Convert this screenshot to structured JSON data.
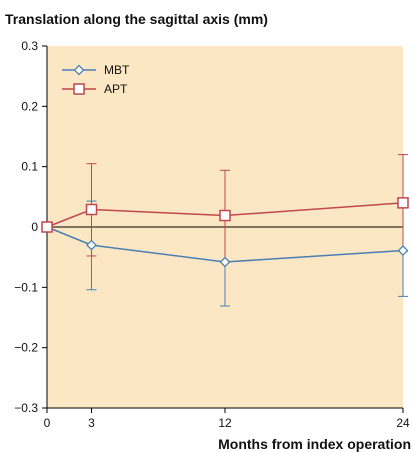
{
  "chart_data": {
    "type": "line",
    "title": "Translation along the sagittal axis (mm)",
    "xlabel": "Months from index operation",
    "ylabel": "",
    "x": [
      0,
      3,
      12,
      24
    ],
    "x_ticks": [
      "0",
      "3",
      "12",
      "24"
    ],
    "xlim": [
      0,
      24
    ],
    "ylim": [
      -0.3,
      0.3
    ],
    "y_ticks": [
      "0.3",
      "0.2",
      "0.1",
      "0",
      "−0.1",
      "−0.2",
      "−0.3"
    ],
    "y_tick_values": [
      0.3,
      0.2,
      0.1,
      0,
      -0.1,
      -0.2,
      -0.3
    ],
    "grid": false,
    "legend_position": "top-left",
    "background_color": "#fbe7c3",
    "series": [
      {
        "name": "MBT",
        "color": "#4a7fb5",
        "marker": "diamond",
        "values": [
          0,
          -0.03,
          -0.058,
          -0.039
        ],
        "error_low": [
          0,
          -0.104,
          -0.131,
          -0.115
        ],
        "error_high": [
          0,
          0.043,
          0.015,
          0.037
        ]
      },
      {
        "name": "APT",
        "color": "#c0474e",
        "marker": "square",
        "values": [
          0,
          0.029,
          0.019,
          0.04
        ],
        "error_low": [
          0,
          -0.048,
          -0.057,
          -0.04
        ],
        "error_high": [
          0,
          0.105,
          0.094,
          0.12
        ]
      }
    ]
  }
}
